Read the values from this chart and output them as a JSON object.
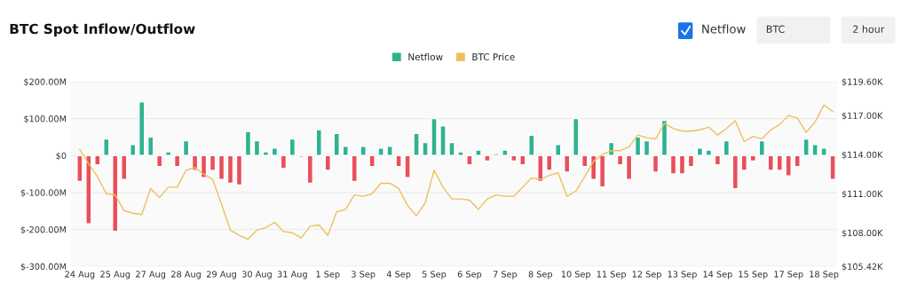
{
  "chart_data": {
    "type": "bar",
    "title": "BTC Spot Inflow/Outflow",
    "annotations": [
      "Netflow",
      "BTC",
      "2 hour"
    ],
    "categories": [
      "24 Aug",
      null,
      null,
      null,
      "25 Aug",
      null,
      null,
      null,
      "27 Aug",
      null,
      null,
      null,
      "28 Aug",
      null,
      null,
      null,
      "29 Aug",
      null,
      null,
      null,
      "30 Aug",
      null,
      null,
      null,
      "31 Aug",
      null,
      null,
      null,
      "1 Sep",
      null,
      null,
      null,
      "3 Sep",
      null,
      null,
      null,
      "4 Sep",
      null,
      null,
      null,
      "5 Sep",
      null,
      null,
      null,
      "6 Sep",
      null,
      null,
      null,
      "7 Sep",
      null,
      null,
      null,
      "8 Sep",
      null,
      null,
      null,
      "10 Sep",
      null,
      null,
      null,
      "11 Sep",
      null,
      null,
      null,
      "12 Sep",
      null,
      null,
      null,
      "13 Sep",
      null,
      null,
      null,
      "14 Sep",
      null,
      null,
      null,
      "15 Sep",
      null,
      null,
      null,
      "17 Sep",
      null,
      null,
      null,
      "18 Sep",
      null
    ],
    "series": [
      {
        "name": "Netflow",
        "color": "#2fb38f",
        "values": [
          -70,
          -185,
          -25,
          45,
          -205,
          -65,
          30,
          145,
          50,
          -30,
          10,
          -30,
          40,
          -40,
          -60,
          -40,
          -65,
          -75,
          -80,
          65,
          40,
          10,
          20,
          -35,
          45,
          -5,
          -75,
          70,
          -40,
          60,
          25,
          -70,
          25,
          -30,
          20,
          25,
          -30,
          -60,
          60,
          35,
          100,
          80,
          35,
          10,
          -25,
          15,
          -15,
          5,
          15,
          -15,
          -25,
          55,
          -70,
          -40,
          30,
          -45,
          100,
          -30,
          -65,
          -85,
          35,
          -25,
          -65,
          50,
          40,
          -45,
          95,
          -50,
          -50,
          -30,
          20,
          15,
          -25,
          40,
          -90,
          -40,
          -15,
          40,
          -40,
          -40,
          -55,
          -30,
          45,
          30,
          20,
          -65
        ],
        "colors": [
          "#e8505b",
          "#e8505b",
          "#e8505b",
          "#2fb38f",
          "#e8505b",
          "#e8505b",
          "#2fb38f",
          "#2fb38f",
          "#2fb38f",
          "#e8505b",
          "#2fb38f",
          "#e8505b",
          "#2fb38f",
          "#e8505b",
          "#e8505b",
          "#e8505b",
          "#e8505b",
          "#e8505b",
          "#e8505b",
          "#2fb38f",
          "#2fb38f",
          "#2fb38f",
          "#2fb38f",
          "#e8505b",
          "#2fb38f",
          "#e8505b",
          "#e8505b",
          "#2fb38f",
          "#e8505b",
          "#2fb38f",
          "#2fb38f",
          "#e8505b",
          "#2fb38f",
          "#e8505b",
          "#2fb38f",
          "#2fb38f",
          "#e8505b",
          "#e8505b",
          "#2fb38f",
          "#2fb38f",
          "#2fb38f",
          "#2fb38f",
          "#2fb38f",
          "#2fb38f",
          "#e8505b",
          "#2fb38f",
          "#e8505b",
          "#2fb38f",
          "#2fb38f",
          "#e8505b",
          "#e8505b",
          "#2fb38f",
          "#e8505b",
          "#e8505b",
          "#2fb38f",
          "#e8505b",
          "#2fb38f",
          "#e8505b",
          "#e8505b",
          "#e8505b",
          "#2fb38f",
          "#e8505b",
          "#e8505b",
          "#2fb38f",
          "#2fb38f",
          "#e8505b",
          "#2fb38f",
          "#e8505b",
          "#e8505b",
          "#e8505b",
          "#2fb38f",
          "#2fb38f",
          "#e8505b",
          "#2fb38f",
          "#e8505b",
          "#e8505b",
          "#e8505b",
          "#2fb38f",
          "#e8505b",
          "#e8505b",
          "#e8505b",
          "#e8505b",
          "#2fb38f",
          "#2fb38f",
          "#2fb38f",
          "#e8505b"
        ]
      },
      {
        "name": "BTC Price",
        "type": "line",
        "axis": "y2",
        "color": "#ecc15c",
        "values": [
          114.4,
          113.3,
          112.3,
          111.0,
          110.9,
          109.7,
          109.5,
          109.4,
          111.4,
          110.7,
          111.5,
          111.5,
          112.8,
          113.0,
          112.5,
          112.1,
          110.2,
          108.2,
          107.8,
          107.5,
          108.2,
          108.4,
          108.8,
          108.1,
          108.0,
          107.6,
          108.5,
          108.6,
          107.8,
          109.6,
          109.8,
          110.9,
          110.8,
          111.0,
          111.8,
          111.8,
          111.4,
          110.1,
          109.3,
          110.3,
          112.8,
          111.5,
          110.6,
          110.6,
          110.5,
          109.8,
          110.6,
          110.9,
          110.8,
          110.8,
          111.5,
          112.2,
          112.1,
          112.4,
          112.6,
          110.8,
          111.2,
          112.3,
          113.5,
          114.0,
          114.3,
          114.3,
          114.6,
          115.5,
          115.3,
          115.2,
          116.4,
          116.0,
          115.8,
          115.8,
          115.9,
          116.1,
          115.5,
          116.0,
          116.6,
          115.0,
          115.4,
          115.2,
          115.9,
          116.3,
          117.0,
          116.8,
          115.7,
          116.5,
          117.8,
          117.3
        ]
      }
    ],
    "ylim": [
      -300,
      200
    ],
    "yticks": [
      {
        "value": -300,
        "label": "$-300.00M"
      },
      {
        "value": -200,
        "label": "$-200.00M"
      },
      {
        "value": -100,
        "label": "$-100.00M"
      },
      {
        "value": 0,
        "label": "$0"
      },
      {
        "value": 100,
        "label": "$100.00M"
      },
      {
        "value": 200,
        "label": "$200.00M"
      }
    ],
    "y2lim": [
      105.42,
      119.6
    ],
    "y2ticks": [
      {
        "value": 105.42,
        "label": "$105.42K"
      },
      {
        "value": 108,
        "label": "$108.00K"
      },
      {
        "value": 111,
        "label": "$111.00K"
      },
      {
        "value": 114,
        "label": "$114.00K"
      },
      {
        "value": 117,
        "label": "$117.00K"
      },
      {
        "value": 119.6,
        "label": "$119.60K"
      }
    ],
    "grid": "y",
    "legend": "top"
  }
}
